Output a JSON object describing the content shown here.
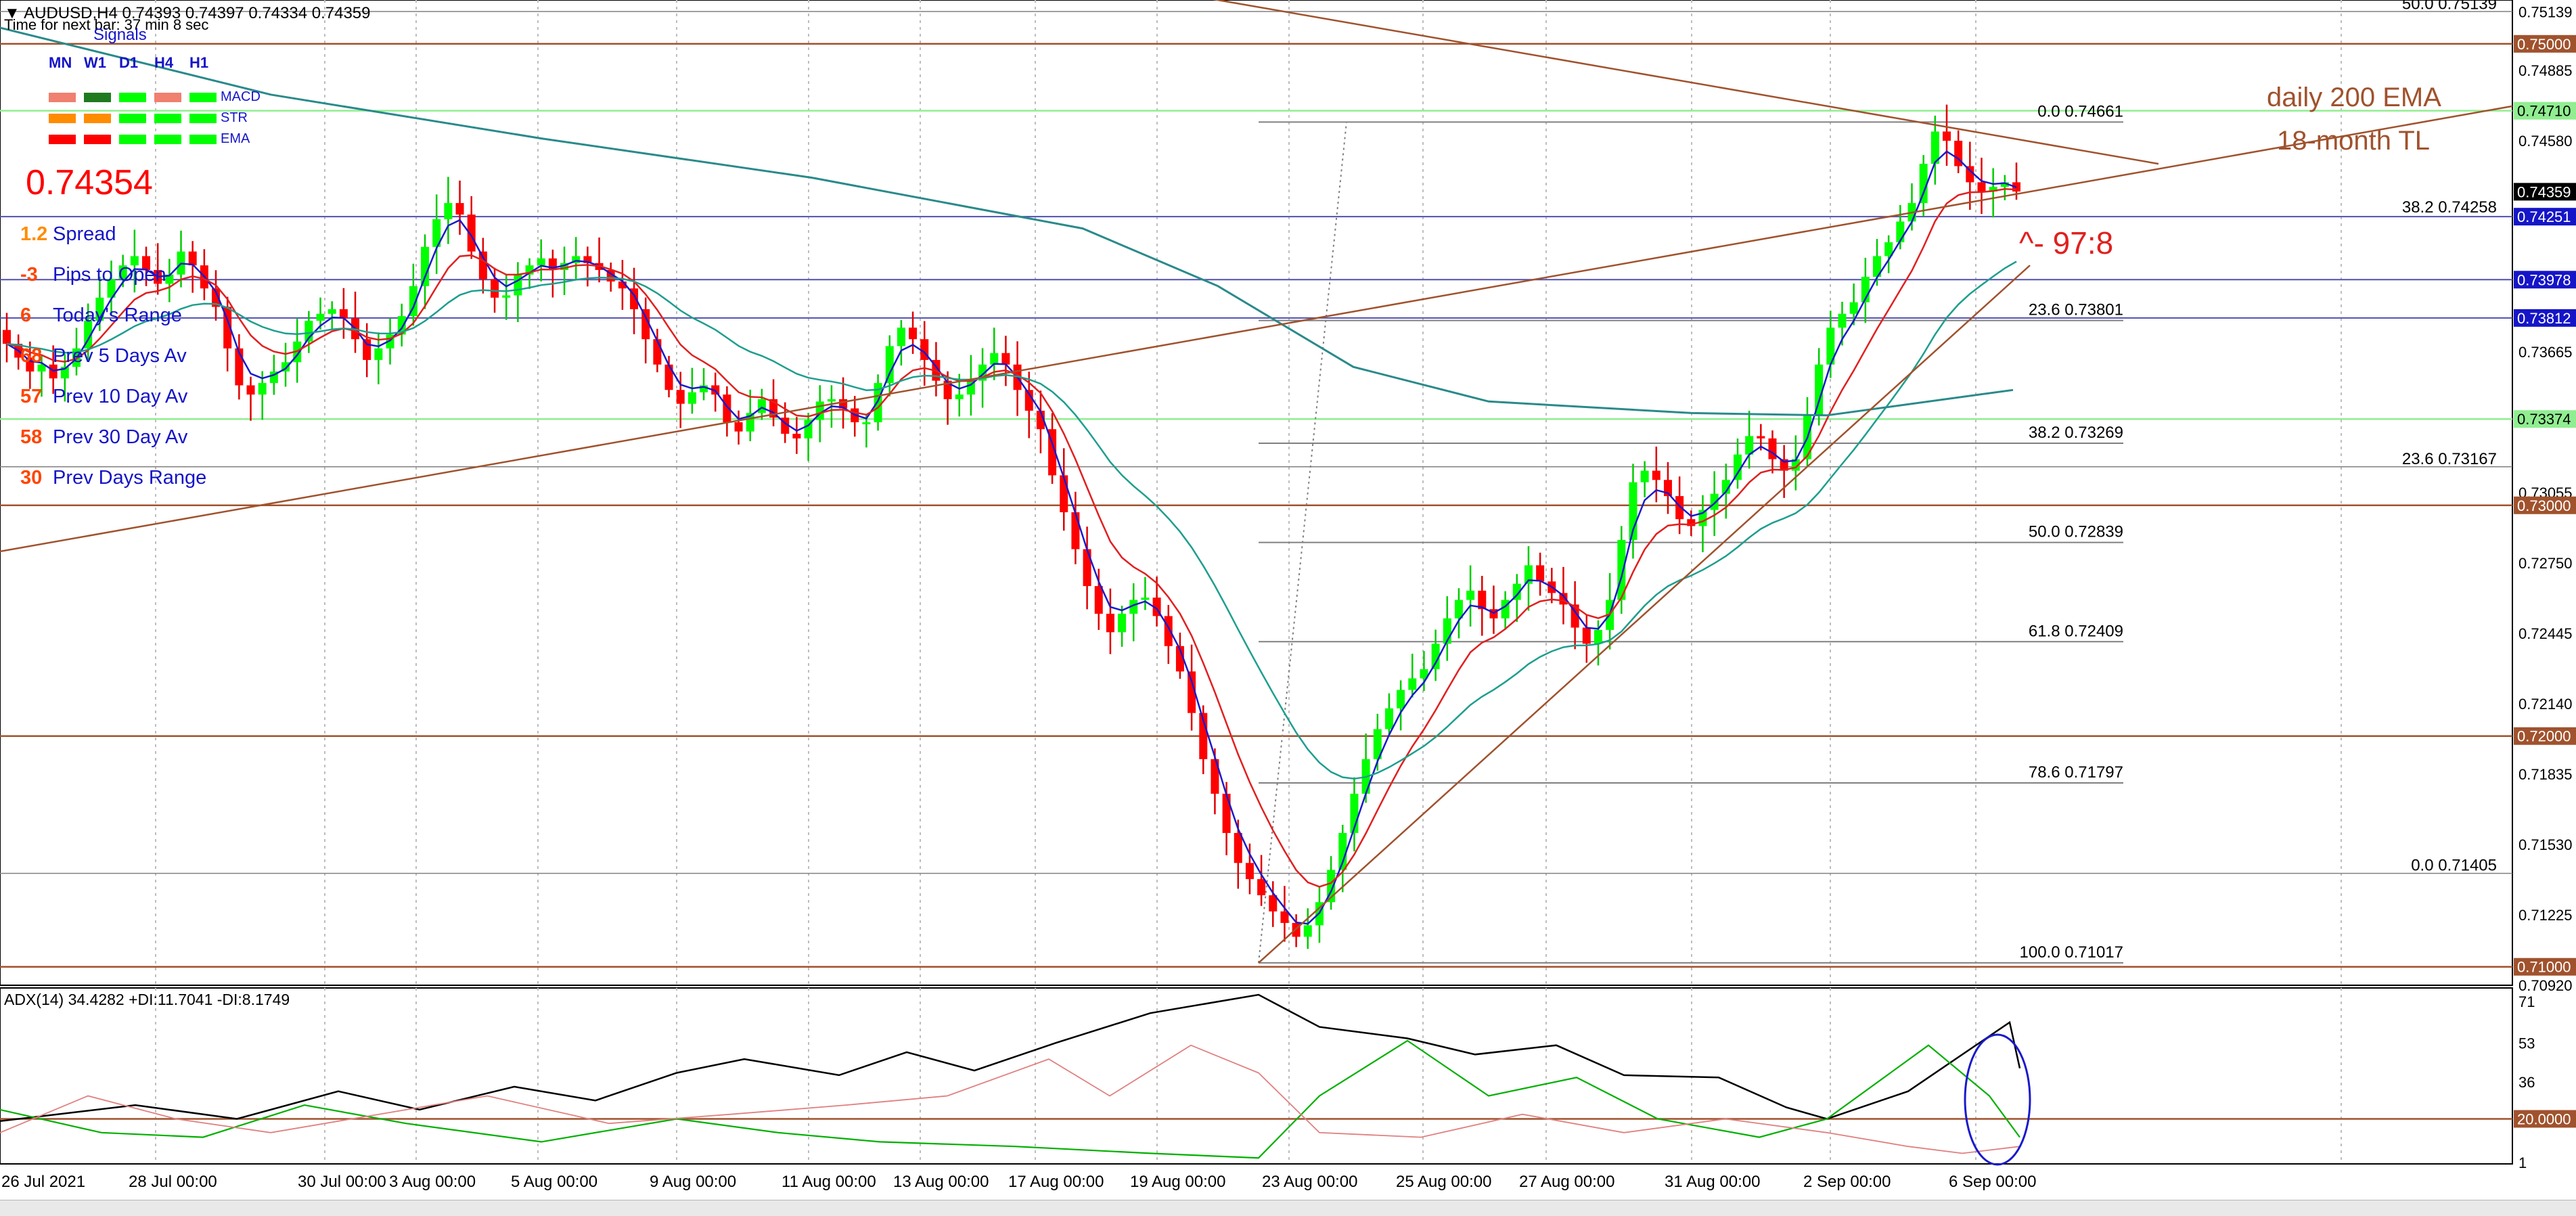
{
  "window": {
    "title": "AUDUSD,H4  0.74393 0.74397 0.74334 0.74359",
    "timer": "Time for next bar: 37 min 8 sec"
  },
  "signals": {
    "title": "Signals",
    "timeframes": [
      "MN",
      "W1",
      "D1",
      "H4",
      "H1"
    ],
    "rows": [
      {
        "label": "MACD",
        "colors": [
          "#f08070",
          "#1f7a1f",
          "#00ff00",
          "#f08070",
          "#00ff00"
        ]
      },
      {
        "label": "STR",
        "colors": [
          "#ff8c00",
          "#ff8c00",
          "#00ff00",
          "#00ff00",
          "#00ff00"
        ]
      },
      {
        "label": "EMA",
        "colors": [
          "#ff0000",
          "#ff0000",
          "#00ff00",
          "#00ff00",
          "#00ff00"
        ]
      }
    ]
  },
  "price_big": "0.74354",
  "stats": [
    {
      "value": "1.2",
      "label": "Spread",
      "color": "#ff8c00"
    },
    {
      "value": "-3",
      "label": "Pips to Open",
      "color": "#ff4500"
    },
    {
      "value": "6",
      "label": "Today's Range",
      "color": "#ff4500"
    },
    {
      "value": "68",
      "label": "Prev 5 Days Av",
      "color": "#ff4500"
    },
    {
      "value": "57",
      "label": "Prev 10 Day Av",
      "color": "#ff4500"
    },
    {
      "value": "58",
      "label": "Prev 30 Day Av",
      "color": "#ff4500"
    },
    {
      "value": "30",
      "label": "Prev Days Range",
      "color": "#ff4500"
    }
  ],
  "annotations": {
    "ema_label": "daily 200 EMA",
    "tl_label": "18-month TL",
    "ratio": "^- 97:8"
  },
  "fib_main": [
    {
      "label": "0.0",
      "value": "0.74661",
      "price": 0.74661
    },
    {
      "label": "23.6",
      "value": "0.73801",
      "price": 0.73801
    },
    {
      "label": "38.2",
      "value": "0.73269",
      "price": 0.73269
    },
    {
      "label": "50.0",
      "value": "0.72839",
      "price": 0.72839
    },
    {
      "label": "61.8",
      "value": "0.72409",
      "price": 0.72409
    },
    {
      "label": "78.6",
      "value": "0.71797",
      "price": 0.71797
    },
    {
      "label": "100.0",
      "value": "0.71017",
      "price": 0.71017
    }
  ],
  "fib_secondary": [
    {
      "label": "50.0",
      "value": "0.75139",
      "price": 0.75139
    },
    {
      "label": "38.2",
      "value": "0.74258",
      "price": 0.74258
    },
    {
      "label": "23.6",
      "value": "0.73167",
      "price": 0.73167
    },
    {
      "label": "0.0",
      "value": "0.71405",
      "price": 0.71405
    }
  ],
  "price_axis": {
    "plain": [
      "0.75139",
      "0.74885",
      "0.74580",
      "0.73665",
      "0.73055",
      "0.72750",
      "0.72445",
      "0.72140",
      "0.71835",
      "0.71530",
      "0.71225",
      "0.70920"
    ],
    "plain_prices": [
      0.75139,
      0.74885,
      0.7458,
      0.73665,
      0.73055,
      0.7275,
      0.72445,
      0.7214,
      0.71835,
      0.7153,
      0.71225,
      0.7092
    ],
    "boxes": [
      {
        "text": "0.75000",
        "price": 0.75,
        "bg": "#a0522d"
      },
      {
        "text": "0.74710",
        "price": 0.7471,
        "bg": "#90ee90"
      },
      {
        "text": "0.74359",
        "price": 0.74359,
        "bg": "#000000"
      },
      {
        "text": "0.74251",
        "price": 0.74251,
        "bg": "#1515c8"
      },
      {
        "text": "0.73978",
        "price": 0.73978,
        "bg": "#1515c8"
      },
      {
        "text": "0.73812",
        "price": 0.73812,
        "bg": "#1515c8"
      },
      {
        "text": "0.73374",
        "price": 0.73374,
        "bg": "#90ee90"
      },
      {
        "text": "0.73000",
        "price": 0.73,
        "bg": "#a0522d"
      },
      {
        "text": "0.72000",
        "price": 0.72,
        "bg": "#a0522d"
      },
      {
        "text": "0.71000",
        "price": 0.71,
        "bg": "#a0522d"
      }
    ]
  },
  "date_axis": [
    "26 Jul 2021",
    "28 Jul 00:00",
    "30 Jul 00:00",
    "3 Aug 00:00",
    "5 Aug 00:00",
    "9 Aug 00:00",
    "11 Aug 00:00",
    "13 Aug 00:00",
    "17 Aug 00:00",
    "19 Aug 00:00",
    "23 Aug 00:00",
    "25 Aug 00:00",
    "27 Aug 00:00",
    "31 Aug 00:00",
    "2 Sep 00:00",
    "6 Sep 00:00"
  ],
  "adx": {
    "title": "ADX(14) 34.4282 +DI:11.7041 -DI:8.1749",
    "scale": [
      "71",
      "53",
      "36",
      "1"
    ],
    "level_label": "20.0000",
    "level": 20
  },
  "chart_data": {
    "type": "candlestick",
    "symbol": "AUDUSD",
    "timeframe": "H4",
    "ylim": [
      0.7092,
      0.7519
    ],
    "closes_approx": [
      0.737,
      0.7364,
      0.7358,
      0.7361,
      0.7355,
      0.736,
      0.7368,
      0.738,
      0.739,
      0.7398,
      0.7404,
      0.7408,
      0.7402,
      0.7396,
      0.74,
      0.741,
      0.7404,
      0.7394,
      0.7386,
      0.7368,
      0.7352,
      0.7348,
      0.7353,
      0.7358,
      0.7362,
      0.7371,
      0.738,
      0.7383,
      0.7385,
      0.7381,
      0.7372,
      0.7363,
      0.7368,
      0.7374,
      0.7382,
      0.7395,
      0.7412,
      0.7424,
      0.7431,
      0.7426,
      0.741,
      0.7398,
      0.739,
      0.7391,
      0.74,
      0.7404,
      0.7407,
      0.7402,
      0.7405,
      0.7408,
      0.7405,
      0.7402,
      0.7397,
      0.7394,
      0.7385,
      0.7372,
      0.7361,
      0.735,
      0.7344,
      0.7349,
      0.7352,
      0.7348,
      0.7336,
      0.7332,
      0.734,
      0.7346,
      0.7338,
      0.7331,
      0.7329,
      0.7337,
      0.7345,
      0.7346,
      0.7342,
      0.7336,
      0.7336,
      0.7353,
      0.7369,
      0.7377,
      0.7372,
      0.7363,
      0.7354,
      0.7346,
      0.7348,
      0.7354,
      0.7361,
      0.7366,
      0.7361,
      0.735,
      0.7341,
      0.7333,
      0.7313,
      0.7297,
      0.7281,
      0.7265,
      0.7253,
      0.7245,
      0.7253,
      0.7259,
      0.726,
      0.7252,
      0.7239,
      0.7228,
      0.721,
      0.719,
      0.7175,
      0.7158,
      0.7145,
      0.7138,
      0.7131,
      0.7124,
      0.7119,
      0.7113,
      0.7118,
      0.7128,
      0.7142,
      0.7158,
      0.7175,
      0.719,
      0.7203,
      0.7212,
      0.722,
      0.7225,
      0.7229,
      0.724,
      0.7251,
      0.7259,
      0.7263,
      0.7255,
      0.7251,
      0.7259,
      0.7266,
      0.7274,
      0.7267,
      0.7262,
      0.7257,
      0.7247,
      0.724,
      0.7246,
      0.7259,
      0.7285,
      0.731,
      0.7315,
      0.7311,
      0.7304,
      0.7294,
      0.7291,
      0.7298,
      0.7305,
      0.7311,
      0.7322,
      0.733,
      0.7329,
      0.732,
      0.7315,
      0.732,
      0.7339,
      0.7361,
      0.7377,
      0.7383,
      0.7388,
      0.7399,
      0.7408,
      0.7414,
      0.7423,
      0.7431,
      0.7448,
      0.7462,
      0.7458,
      0.7447,
      0.744,
      0.7436,
      0.7438,
      0.744,
      0.7436
    ]
  }
}
